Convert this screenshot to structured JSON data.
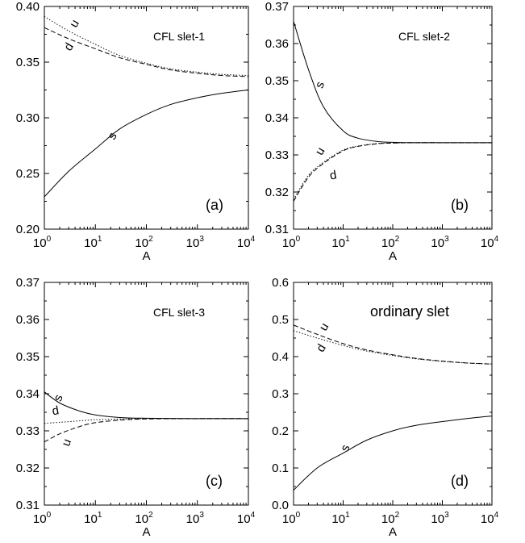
{
  "chart_data": [
    {
      "type": "line",
      "title": "CFL slet-1",
      "panel_label": "(a)",
      "xlabel": "A",
      "ylabel": "",
      "xscale": "log",
      "xlim": [
        1,
        10000
      ],
      "ylim": [
        0.2,
        0.4
      ],
      "x_ticks": [
        1,
        10,
        100,
        1000,
        10000
      ],
      "x_tick_labels": [
        [
          "10",
          "0"
        ],
        [
          "10",
          "1"
        ],
        [
          "10",
          "2"
        ],
        [
          "10",
          "3"
        ],
        [
          "10",
          "4"
        ]
      ],
      "y_ticks": [
        0.2,
        0.25,
        0.3,
        0.35,
        0.4
      ],
      "y_tick_labels": [
        "0.20",
        "0.25",
        "0.30",
        "0.35",
        "0.40"
      ],
      "x": [
        1,
        3,
        10,
        30,
        100,
        300,
        1000,
        3000,
        10000
      ],
      "series": [
        {
          "name": "u",
          "line_style": "dotted",
          "values": [
            0.391,
            0.378,
            0.366,
            0.356,
            0.349,
            0.344,
            0.341,
            0.339,
            0.338
          ]
        },
        {
          "name": "d",
          "line_style": "dashed",
          "values": [
            0.381,
            0.371,
            0.362,
            0.354,
            0.348,
            0.343,
            0.34,
            0.338,
            0.337
          ]
        },
        {
          "name": "s",
          "line_style": "solid",
          "values": [
            0.229,
            0.252,
            0.272,
            0.29,
            0.303,
            0.312,
            0.318,
            0.322,
            0.325
          ]
        }
      ],
      "annotations": [
        {
          "text": "u",
          "x": 4.5,
          "y": 0.383
        },
        {
          "text": "d",
          "x": 3.5,
          "y": 0.362
        },
        {
          "text": "s",
          "x": 25,
          "y": 0.282
        }
      ]
    },
    {
      "type": "line",
      "title": "CFL slet-2",
      "panel_label": "(b)",
      "xlabel": "A",
      "ylabel": "",
      "xscale": "log",
      "xlim": [
        1,
        10000
      ],
      "ylim": [
        0.31,
        0.37
      ],
      "x_ticks": [
        1,
        10,
        100,
        1000,
        10000
      ],
      "x_tick_labels": [
        [
          "10",
          "0"
        ],
        [
          "10",
          "1"
        ],
        [
          "10",
          "2"
        ],
        [
          "10",
          "3"
        ],
        [
          "10",
          "4"
        ]
      ],
      "y_ticks": [
        0.31,
        0.32,
        0.33,
        0.34,
        0.35,
        0.36,
        0.37
      ],
      "y_tick_labels": [
        "0.31",
        "0.32",
        "0.33",
        "0.34",
        "0.35",
        "0.36",
        "0.37"
      ],
      "x": [
        1,
        2,
        4,
        10,
        20,
        50,
        100,
        300,
        1000,
        10000
      ],
      "series": [
        {
          "name": "s",
          "line_style": "solid",
          "values": [
            0.366,
            0.353,
            0.343,
            0.3365,
            0.3345,
            0.3336,
            0.3334,
            0.3333,
            0.3333,
            0.3333
          ]
        },
        {
          "name": "u",
          "line_style": "dotted",
          "values": [
            0.318,
            0.3245,
            0.328,
            0.3313,
            0.3324,
            0.3331,
            0.3332,
            0.3333,
            0.3333,
            0.3333
          ]
        },
        {
          "name": "d",
          "line_style": "dashed",
          "values": [
            0.3175,
            0.324,
            0.3277,
            0.3311,
            0.3323,
            0.333,
            0.3332,
            0.3333,
            0.3333,
            0.3333
          ]
        }
      ],
      "annotations": [
        {
          "text": "s",
          "x": 4,
          "y": 0.3485
        },
        {
          "text": "u",
          "x": 4,
          "y": 0.3305
        },
        {
          "text": "d",
          "x": 6.5,
          "y": 0.3235
        }
      ]
    },
    {
      "type": "line",
      "title": "CFL slet-3",
      "panel_label": "(c)",
      "xlabel": "A",
      "ylabel": "",
      "xscale": "log",
      "xlim": [
        1,
        10000
      ],
      "ylim": [
        0.31,
        0.37
      ],
      "x_ticks": [
        1,
        10,
        100,
        1000,
        10000
      ],
      "x_tick_labels": [
        [
          "10",
          "0"
        ],
        [
          "10",
          "1"
        ],
        [
          "10",
          "2"
        ],
        [
          "10",
          "3"
        ],
        [
          "10",
          "4"
        ]
      ],
      "y_ticks": [
        0.31,
        0.32,
        0.33,
        0.34,
        0.35,
        0.36,
        0.37
      ],
      "y_tick_labels": [
        "0.31",
        "0.32",
        "0.33",
        "0.34",
        "0.35",
        "0.36",
        "0.37"
      ],
      "x": [
        1,
        2,
        5,
        10,
        30,
        100,
        1000,
        10000
      ],
      "series": [
        {
          "name": "s",
          "line_style": "solid",
          "values": [
            0.3405,
            0.3375,
            0.3353,
            0.3343,
            0.3336,
            0.3334,
            0.3333,
            0.3333
          ]
        },
        {
          "name": "d",
          "line_style": "dotted",
          "values": [
            0.332,
            0.3323,
            0.3327,
            0.333,
            0.3332,
            0.3333,
            0.3333,
            0.3333
          ]
        },
        {
          "name": "u",
          "line_style": "dashed",
          "values": [
            0.327,
            0.3292,
            0.3312,
            0.3322,
            0.3329,
            0.3332,
            0.3333,
            0.3333
          ]
        }
      ],
      "annotations": [
        {
          "text": "s",
          "x": 2.2,
          "y": 0.3385
        },
        {
          "text": "d",
          "x": 1.7,
          "y": 0.3344
        },
        {
          "text": "u",
          "x": 3.2,
          "y": 0.3265
        }
      ]
    },
    {
      "type": "line",
      "title": "ordinary slet",
      "panel_label": "(d)",
      "xlabel": "A",
      "ylabel": "",
      "xscale": "log",
      "xlim": [
        1,
        10000
      ],
      "ylim": [
        0.0,
        0.6
      ],
      "x_ticks": [
        1,
        10,
        100,
        1000,
        10000
      ],
      "x_tick_labels": [
        [
          "10",
          "0"
        ],
        [
          "10",
          "1"
        ],
        [
          "10",
          "2"
        ],
        [
          "10",
          "3"
        ],
        [
          "10",
          "4"
        ]
      ],
      "y_ticks": [
        0.0,
        0.1,
        0.2,
        0.3,
        0.4,
        0.5,
        0.6
      ],
      "y_tick_labels": [
        "0.0",
        "0.1",
        "0.2",
        "0.3",
        "0.4",
        "0.5",
        "0.6"
      ],
      "x": [
        1,
        3,
        10,
        30,
        100,
        300,
        1000,
        3000,
        10000
      ],
      "series": [
        {
          "name": "u",
          "line_style": "dashed",
          "values": [
            0.485,
            0.46,
            0.435,
            0.418,
            0.405,
            0.395,
            0.388,
            0.383,
            0.38
          ]
        },
        {
          "name": "d",
          "line_style": "dotted",
          "values": [
            0.47,
            0.45,
            0.43,
            0.415,
            0.403,
            0.394,
            0.387,
            0.383,
            0.38
          ]
        },
        {
          "name": "s",
          "line_style": "solid",
          "values": [
            0.04,
            0.1,
            0.14,
            0.175,
            0.2,
            0.215,
            0.225,
            0.233,
            0.24
          ]
        }
      ],
      "annotations": [
        {
          "text": "u",
          "x": 4.8,
          "y": 0.475
        },
        {
          "text": "d",
          "x": 4.2,
          "y": 0.418
        },
        {
          "text": "s",
          "x": 13,
          "y": 0.15
        }
      ]
    }
  ]
}
